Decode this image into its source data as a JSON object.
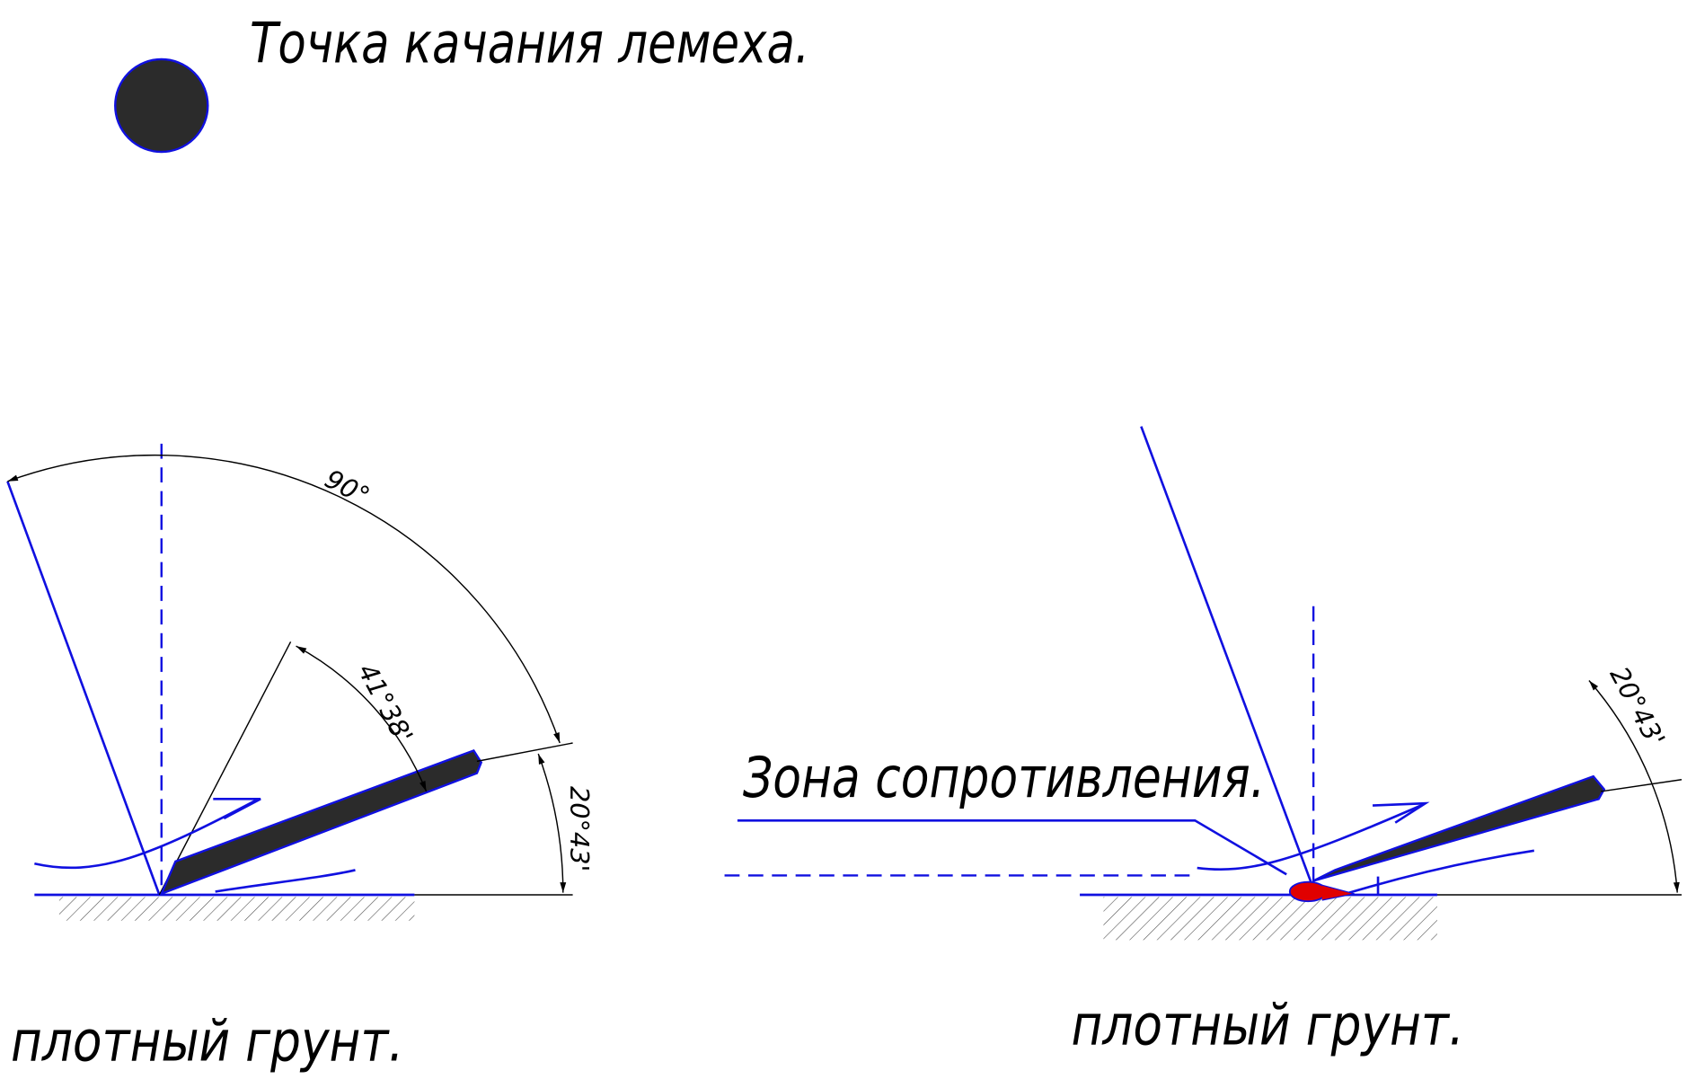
{
  "title": "Точка качания лемеха.",
  "left": {
    "angles": [
      "90°",
      "41°38'",
      "20°43'"
    ],
    "soil": "плотный грунт."
  },
  "right": {
    "zone": "Зона сопротивления.",
    "angle": "20°43'",
    "soil": "плотный грунт."
  }
}
